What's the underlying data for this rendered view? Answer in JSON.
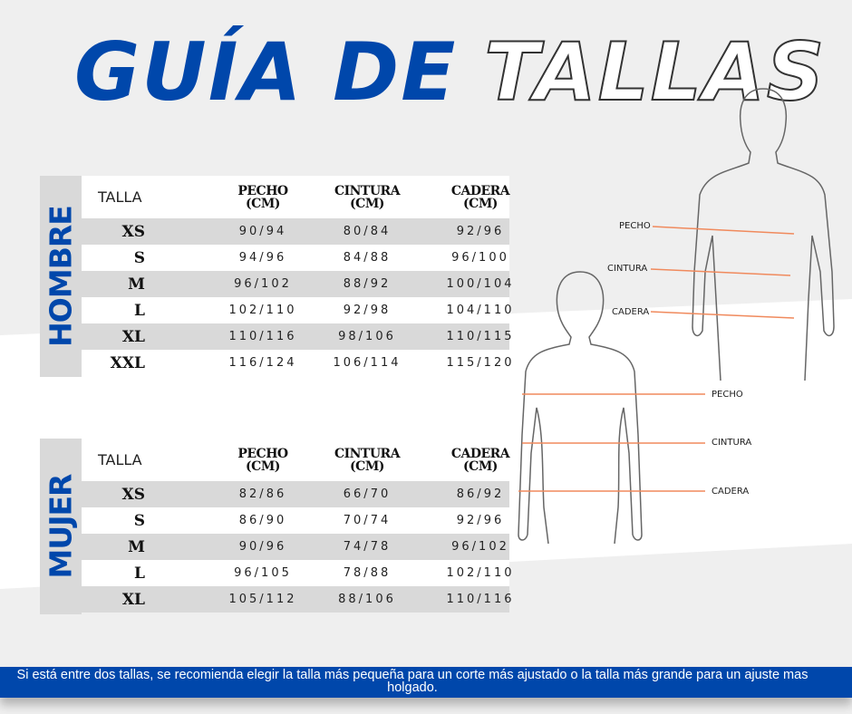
{
  "title": {
    "part1": "GUÍA DE",
    "part2": "TALLAS"
  },
  "headers": {
    "talla": "TALLA",
    "pecho": "PECHO",
    "cintura": "CINTURA",
    "cadera": "CADERA",
    "unit": "(CM)"
  },
  "hombre": {
    "label": "HOMBRE",
    "rows": [
      [
        "XS",
        "90/94",
        "80/84",
        "92/96"
      ],
      [
        "S",
        "94/96",
        "84/88",
        "96/100"
      ],
      [
        "M",
        "96/102",
        "88/92",
        "100/104"
      ],
      [
        "L",
        "102/110",
        "92/98",
        "104/110"
      ],
      [
        "XL",
        "110/116",
        "98/106",
        "110/115"
      ],
      [
        "XXL",
        "116/124",
        "106/114",
        "115/120"
      ]
    ]
  },
  "mujer": {
    "label": "MUJER",
    "rows": [
      [
        "XS",
        "82/86",
        "66/70",
        "86/92"
      ],
      [
        "S",
        "86/90",
        "70/74",
        "92/96"
      ],
      [
        "M",
        "90/96",
        "74/78",
        "96/102"
      ],
      [
        "L",
        "96/105",
        "78/88",
        "102/110"
      ],
      [
        "XL",
        "105/112",
        "88/106",
        "110/116"
      ]
    ]
  },
  "figure_labels": {
    "pecho": "PECHO",
    "cintura": "CINTURA",
    "cadera": "CADERA"
  },
  "colors": {
    "brand_blue": "#0047ab",
    "measure_line": "#f08a5d",
    "row_gray": "#d9d9d9"
  },
  "footer": "Si está entre dos tallas, se recomienda elegir la talla más pequeña para un corte más ajustado o la talla más grande para un ajuste mas holgado."
}
